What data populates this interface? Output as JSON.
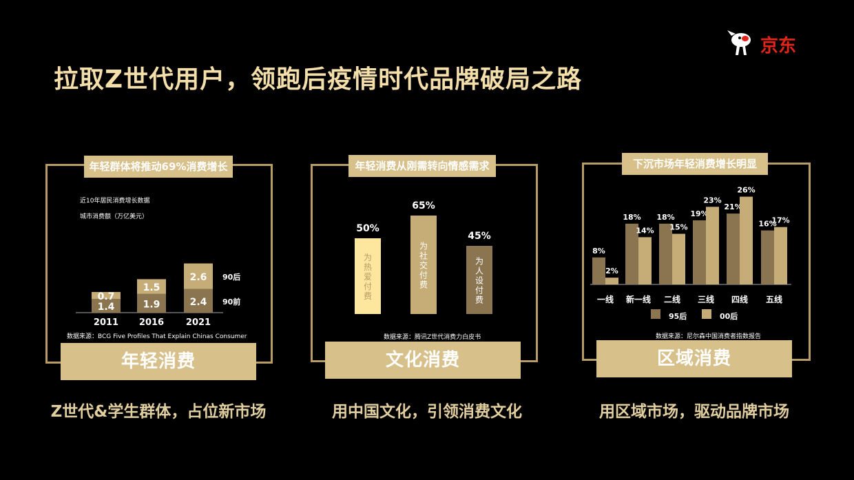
{
  "title": "拉取Z世代用户，领跑后疫情时代品牌破局之路",
  "logo": {
    "text": "京东",
    "icon": "jd-dog-mascot-icon",
    "color": "#e1251b"
  },
  "colors": {
    "gold": "#b79c64",
    "gold_light": "#d8c08a",
    "dark_bar": "#8b7550",
    "light_bar": "#c6ad78",
    "highlight_bar": "#fde79f"
  },
  "panels": [
    {
      "badge": "年轻群体将推动69%消费增长",
      "footer": "年轻消费",
      "caption": "Z世代&学生群体，占位新市场",
      "source": "数据来源：BCG Five Profiles That Explain Chinas Consumer",
      "notes": [
        "近10年居民消费增长数据",
        "城市消费额（万亿美元）"
      ]
    },
    {
      "badge": "年轻消费从刚需转向情感需求",
      "footer": "文化消费",
      "caption": "用中国文化，引领消费文化",
      "source": "数据来源：腾讯Z世代消费力白皮书",
      "notes": []
    },
    {
      "badge": "下沉市场年轻消费增长明显",
      "footer": "区域消费",
      "caption": "用区域市场，驱动品牌市场",
      "source": "数据来源：尼尔森中国消费者指数报告",
      "notes": []
    }
  ],
  "chart_data": [
    {
      "type": "bar",
      "stacked": true,
      "categories": [
        "2011",
        "2016",
        "2021"
      ],
      "series": [
        {
          "name": "90前",
          "values": [
            1.4,
            1.9,
            2.4
          ]
        },
        {
          "name": "90后",
          "values": [
            0.7,
            1.5,
            2.6
          ]
        }
      ],
      "title": "近10年居民消费增长数据",
      "ylabel": "城市消费额（万亿美元）"
    },
    {
      "type": "bar",
      "categories": [
        "为热爱付费",
        "为社交付费",
        "为人设付费"
      ],
      "values": [
        50,
        65,
        45
      ],
      "value_labels": [
        "50%",
        "65%",
        "45%"
      ],
      "unit": "%"
    },
    {
      "type": "bar",
      "categories": [
        "一线",
        "新一线",
        "二线",
        "三线",
        "四线",
        "五线"
      ],
      "series": [
        {
          "name": "95后",
          "values": [
            8,
            18,
            18,
            19,
            21,
            16
          ]
        },
        {
          "name": "00后",
          "values": [
            2,
            14,
            15,
            23,
            26,
            17
          ]
        }
      ],
      "unit": "%"
    }
  ]
}
